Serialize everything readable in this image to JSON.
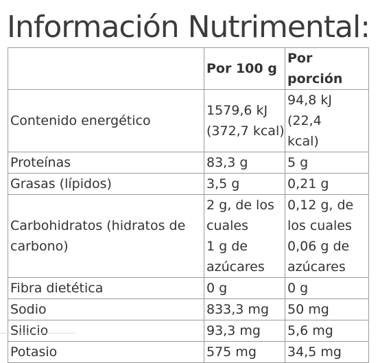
{
  "title": "Información Nutrimental:",
  "table": {
    "headers": [
      "",
      "Por 100 g",
      "Por porción"
    ],
    "rows": [
      {
        "name": "Contenido energético",
        "per100": [
          "1579,6 kJ",
          "(372,7 kcal)"
        ],
        "perServing": [
          "94,8 kJ (22,4",
          "kcal)"
        ]
      },
      {
        "name": "Proteínas",
        "per100": [
          "83,3 g"
        ],
        "perServing": [
          "5 g"
        ]
      },
      {
        "name": "Grasas (lípidos)",
        "per100": [
          "3,5 g"
        ],
        "perServing": [
          "0,21 g"
        ]
      },
      {
        "name_lines": [
          "Carbohidratos (hidratos de",
          "carbono)"
        ],
        "per100": [
          "2 g, de los",
          "cuales",
          "1 g de",
          "azúcares"
        ],
        "perServing": [
          "0,12 g, de",
          "los cuales",
          "0,06 g de",
          "azúcares"
        ]
      },
      {
        "name": "Fibra dietética",
        "per100": [
          "0 g"
        ],
        "perServing": [
          "0 g"
        ]
      },
      {
        "name": "Sodio",
        "per100": [
          "833,3 mg"
        ],
        "perServing": [
          "50 mg"
        ]
      },
      {
        "name": "Silicio",
        "per100": [
          "93,3 mg"
        ],
        "perServing": [
          "5,6 mg"
        ]
      },
      {
        "name": "Potasio",
        "per100": [
          "575 mg"
        ],
        "perServing": [
          "34,5 mg"
        ]
      }
    ]
  }
}
